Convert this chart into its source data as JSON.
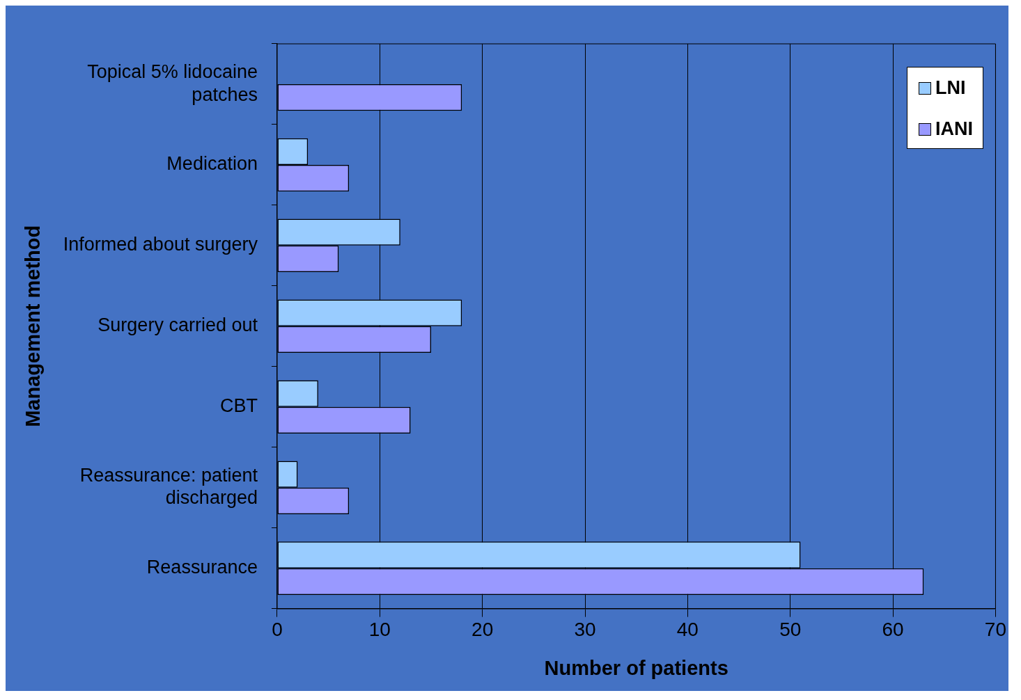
{
  "chart_data": {
    "type": "bar",
    "orientation": "horizontal",
    "xlabel": "Number of patients",
    "ylabel": "Management method",
    "categories": [
      "Topical 5% lidocaine patches",
      "Medication",
      "Informed about surgery",
      "Surgery carried out",
      "CBT",
      "Reassurance: patient discharged",
      "Reassurance"
    ],
    "series": [
      {
        "name": "LNI",
        "color": "#99ccff",
        "values": [
          null,
          3,
          12,
          18,
          4,
          2,
          51
        ]
      },
      {
        "name": "IANI",
        "color": "#9999ff",
        "values": [
          18,
          7,
          6,
          15,
          13,
          7,
          63
        ]
      }
    ],
    "xlim": [
      0,
      70
    ],
    "xticks": [
      0,
      10,
      20,
      30,
      40,
      50,
      60,
      70
    ],
    "grid": "x",
    "legend": "top right"
  }
}
